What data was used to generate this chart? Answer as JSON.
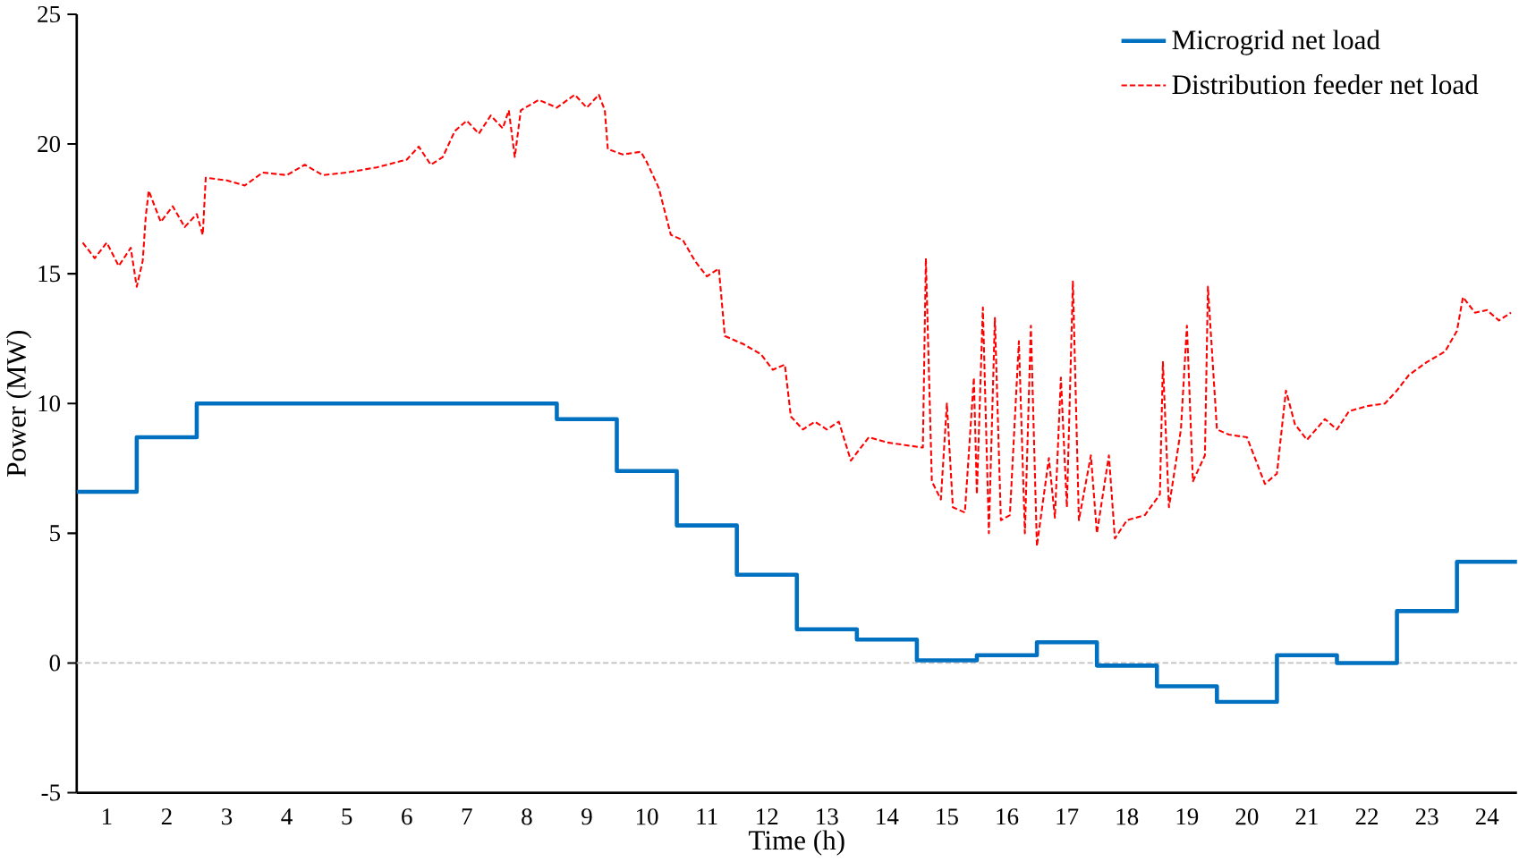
{
  "chart_data": {
    "type": "step",
    "xlabel": "Time (h)",
    "ylabel": "Power (MW)",
    "xlim": [
      0.5,
      24.5
    ],
    "ylim": [
      -5,
      25
    ],
    "xticks": [
      1,
      2,
      3,
      4,
      5,
      6,
      7,
      8,
      9,
      10,
      11,
      12,
      13,
      14,
      15,
      16,
      17,
      18,
      19,
      20,
      21,
      22,
      23,
      24
    ],
    "yticks": [
      -5,
      0,
      5,
      10,
      15,
      20,
      25
    ],
    "grid": false,
    "legend": "top right",
    "marker": "none",
    "ref_lines": [
      {
        "axis": "y",
        "value": 0,
        "color": "#bfbfbf",
        "line_style": "dashed"
      }
    ],
    "series": [
      {
        "name": "Microgrid net load",
        "color": "#0070c0",
        "line_style": "solid",
        "x": [
          0.5,
          1.5,
          2.5,
          3.5,
          4.5,
          5.5,
          6.5,
          7.5,
          8.5,
          9.5,
          10.5,
          11.5,
          12.5,
          13.5,
          14.5,
          15.5,
          16.5,
          17.5,
          18.5,
          19.5,
          20.5,
          21.5,
          22.5,
          23.5,
          24.5
        ],
        "values": [
          6.6,
          8.7,
          10,
          10,
          10,
          10,
          10,
          10,
          9.4,
          7.4,
          5.3,
          3.4,
          1.3,
          0.9,
          0.1,
          0.3,
          0.8,
          -0.1,
          -0.9,
          -1.5,
          0.3,
          0,
          2.0,
          3.9,
          3.9
        ]
      },
      {
        "name": "Distribution feeder net load",
        "type": "line",
        "color": "#ff0000",
        "line_style": "dashed",
        "x": [
          0.6,
          0.8,
          1.0,
          1.2,
          1.4,
          1.5,
          1.6,
          1.65,
          1.7,
          1.9,
          2.1,
          2.3,
          2.5,
          2.6,
          2.65,
          3.0,
          3.3,
          3.6,
          4.0,
          4.3,
          4.6,
          5.0,
          5.5,
          6.0,
          6.2,
          6.4,
          6.6,
          6.8,
          7.0,
          7.2,
          7.4,
          7.6,
          7.7,
          7.8,
          7.9,
          8.2,
          8.5,
          8.8,
          9.0,
          9.2,
          9.3,
          9.35,
          9.6,
          9.9,
          10.0,
          10.2,
          10.4,
          10.6,
          10.8,
          11.0,
          11.2,
          11.3,
          11.6,
          11.9,
          12.1,
          12.3,
          12.4,
          12.6,
          12.8,
          13.0,
          13.2,
          13.4,
          13.7,
          14.0,
          14.3,
          14.6,
          14.65,
          14.75,
          14.9,
          15.0,
          15.1,
          15.3,
          15.45,
          15.5,
          15.6,
          15.7,
          15.8,
          15.9,
          16.05,
          16.2,
          16.3,
          16.4,
          16.5,
          16.7,
          16.8,
          16.9,
          17.0,
          17.1,
          17.2,
          17.4,
          17.5,
          17.7,
          17.8,
          18.0,
          18.3,
          18.55,
          18.6,
          18.7,
          18.9,
          19.0,
          19.1,
          19.3,
          19.35,
          19.5,
          19.7,
          20.0,
          20.2,
          20.3,
          20.5,
          20.65,
          20.8,
          21.0,
          21.3,
          21.5,
          21.7,
          22.0,
          22.3,
          22.5,
          22.7,
          23.0,
          23.3,
          23.5,
          23.6,
          23.8,
          24.0,
          24.2,
          24.4
        ],
        "values": [
          16.2,
          15.6,
          16.2,
          15.3,
          16.0,
          14.5,
          15.5,
          17.2,
          18.2,
          17.0,
          17.6,
          16.8,
          17.3,
          16.5,
          18.7,
          18.6,
          18.4,
          18.9,
          18.8,
          19.2,
          18.8,
          18.9,
          19.1,
          19.4,
          19.9,
          19.2,
          19.5,
          20.5,
          20.9,
          20.4,
          21.1,
          20.6,
          21.3,
          19.5,
          21.3,
          21.7,
          21.4,
          21.9,
          21.4,
          21.9,
          21.3,
          19.8,
          19.6,
          19.7,
          19.3,
          18.3,
          16.5,
          16.3,
          15.5,
          14.9,
          15.2,
          12.6,
          12.3,
          11.9,
          11.3,
          11.5,
          9.5,
          9.0,
          9.3,
          9.0,
          9.3,
          7.8,
          8.7,
          8.5,
          8.4,
          8.3,
          15.6,
          7.0,
          6.3,
          10.0,
          6.0,
          5.8,
          11.0,
          6.5,
          13.7,
          5.0,
          13.3,
          5.5,
          5.7,
          12.4,
          5.0,
          13.0,
          4.5,
          7.9,
          5.6,
          11.0,
          6.0,
          14.7,
          5.5,
          8.0,
          5.0,
          8.0,
          4.8,
          5.5,
          5.7,
          6.5,
          11.6,
          6.0,
          9.0,
          13.0,
          7.0,
          8.0,
          14.5,
          9.0,
          8.8,
          8.7,
          7.5,
          6.9,
          7.3,
          10.5,
          9.2,
          8.6,
          9.4,
          9.0,
          9.7,
          9.9,
          10.0,
          10.5,
          11.1,
          11.6,
          12.0,
          12.8,
          14.1,
          13.5,
          13.6,
          13.2,
          13.5
        ]
      }
    ]
  }
}
